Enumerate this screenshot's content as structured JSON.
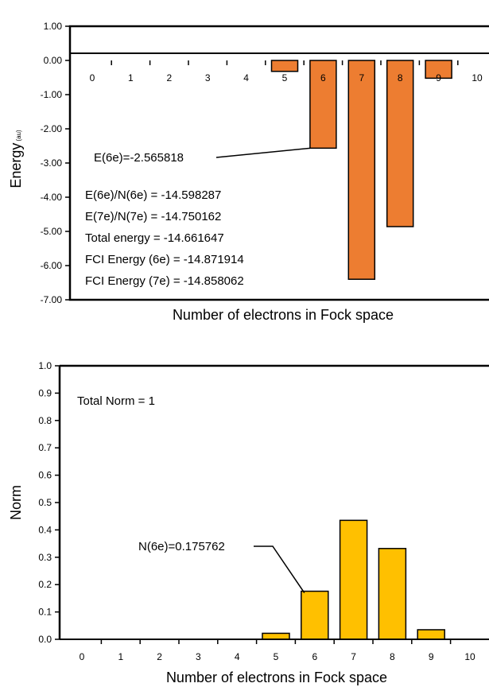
{
  "chart_data": [
    {
      "type": "bar",
      "categories": [
        "0",
        "1",
        "2",
        "3",
        "4",
        "5",
        "6",
        "7",
        "8",
        "9",
        "10"
      ],
      "values": [
        0,
        0,
        0,
        0,
        0,
        -0.32,
        -2.565818,
        -6.4,
        -4.86,
        -0.52,
        0
      ],
      "ylabel": "Energy",
      "ylabel_sub": "(au)",
      "xlabel": "Number of electrons in Fock space",
      "ylim": [
        -7.0,
        1.0
      ],
      "yticks": [
        "1.00",
        "0.00",
        "-1.00",
        "-2.00",
        "-3.00",
        "-4.00",
        "-5.00",
        "-6.00",
        "-7.00"
      ],
      "bar_color": "#ED7D31",
      "callout": {
        "text": "E(6e)=-2.565818",
        "category": "6"
      },
      "annotations": [
        "E(6e)/N(6e) = -14.598287",
        "E(7e)/N(7e) = -14.750162",
        "Total energy = -14.661647",
        "FCI Energy (6e) = -14.871914",
        "FCI Energy (7e) = -14.858062"
      ],
      "grid": false
    },
    {
      "type": "bar",
      "categories": [
        "0",
        "1",
        "2",
        "3",
        "4",
        "5",
        "6",
        "7",
        "8",
        "9",
        "10"
      ],
      "values": [
        0,
        0,
        0,
        0,
        0,
        0.022,
        0.175762,
        0.435,
        0.332,
        0.035,
        0
      ],
      "ylabel": "Norm",
      "xlabel": "Number of electrons in Fock space",
      "ylim": [
        0.0,
        1.0
      ],
      "yticks": [
        "1.0",
        "0.9",
        "0.8",
        "0.7",
        "0.6",
        "0.5",
        "0.4",
        "0.3",
        "0.2",
        "0.1",
        "0.0"
      ],
      "bar_color": "#FFC000",
      "callout": {
        "text": "N(6e)=0.175762",
        "category": "6"
      },
      "annotations": [
        "Total Norm = 1"
      ],
      "grid": false
    }
  ]
}
